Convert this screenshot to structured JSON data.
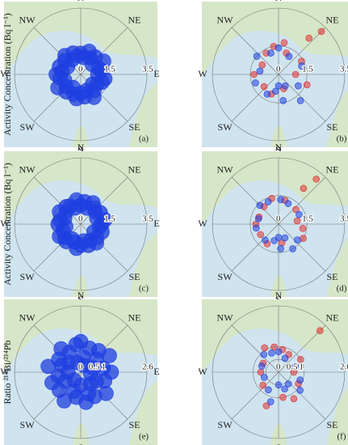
{
  "chart_data": [
    {
      "type": "polar-scatter",
      "panel": "(a)",
      "ylabel": "Activity Concentration (Bq l⁻¹)",
      "directions": [
        "N",
        "NE",
        "E",
        "SE",
        "S",
        "SW",
        "W",
        "NW"
      ],
      "rlim": [
        0,
        3.5
      ],
      "rticks": [
        0,
        1.5,
        3.5
      ],
      "series": [
        {
          "color": "#1f3fe0",
          "theta": [
            0,
            10,
            20,
            30,
            40,
            50,
            60,
            70,
            80,
            90,
            100,
            110,
            120,
            130,
            140,
            150,
            160,
            170,
            180,
            190,
            200,
            210,
            220,
            230,
            240,
            250,
            260,
            270,
            280,
            290,
            300,
            310,
            320,
            330,
            340,
            350
          ],
          "r": [
            1.1,
            0.9,
            1.3,
            1.0,
            1.2,
            0.8,
            1.4,
            1.0,
            1.1,
            0.9,
            1.3,
            1.2,
            1.0,
            0.8,
            1.1,
            1.4,
            0.9,
            1.2,
            1.0,
            1.3,
            1.1,
            0.8,
            1.2,
            1.0,
            1.4,
            0.9,
            1.1,
            1.3,
            1.0,
            1.2,
            0.8,
            1.1,
            1.3,
            0.9,
            1.2,
            1.0
          ]
        }
      ]
    },
    {
      "type": "polar-scatter",
      "panel": "(b)",
      "directions": [
        "N",
        "NE",
        "E",
        "SE",
        "S",
        "SW",
        "W",
        "NW"
      ],
      "rlim": [
        0,
        3.5
      ],
      "rticks": [
        0,
        1.5,
        3.5
      ],
      "series": [
        {
          "color": "#e03030",
          "theta": [
            20,
            40,
            60,
            300,
            330,
            350,
            90,
            110,
            160,
            200,
            230,
            270,
            45,
            10
          ],
          "r": [
            1.2,
            2.5,
            1.4,
            1.0,
            1.3,
            1.5,
            0.9,
            1.6,
            0.8,
            1.1,
            1.0,
            1.3,
            3.2,
            1.7
          ]
        },
        {
          "color": "#2040e0",
          "theta": [
            0,
            30,
            70,
            120,
            150,
            180,
            190,
            210,
            250,
            280,
            310,
            340,
            140,
            170
          ],
          "r": [
            1.4,
            1.1,
            1.3,
            1.2,
            0.7,
            0.6,
            0.9,
            1.2,
            1.3,
            1.0,
            1.5,
            1.2,
            1.8,
            1.4
          ]
        }
      ]
    },
    {
      "type": "polar-scatter",
      "panel": "(c)",
      "ylabel": "Activity Concentration (Bq l⁻¹)",
      "directions": [
        "N",
        "NE",
        "E",
        "SE",
        "S",
        "SW",
        "W",
        "NW"
      ],
      "rlim": [
        0,
        3.5
      ],
      "rticks": [
        0,
        1.5,
        3.5
      ],
      "series": [
        {
          "color": "#1f3fe0",
          "theta": [
            0,
            10,
            20,
            30,
            40,
            50,
            60,
            70,
            80,
            90,
            100,
            110,
            120,
            130,
            140,
            150,
            160,
            170,
            180,
            190,
            200,
            210,
            220,
            230,
            240,
            250,
            260,
            270,
            280,
            290,
            300,
            310,
            320,
            330,
            340,
            350
          ],
          "r": [
            1.0,
            1.2,
            0.9,
            1.3,
            1.1,
            1.0,
            1.2,
            0.9,
            1.3,
            1.1,
            1.0,
            1.2,
            0.8,
            1.1,
            1.3,
            1.0,
            1.2,
            0.9,
            1.1,
            1.3,
            1.0,
            0.9,
            1.2,
            1.1,
            1.3,
            1.0,
            0.8,
            1.2,
            1.1,
            0.9,
            1.3,
            1.0,
            1.2,
            1.1,
            0.9,
            1.3
          ]
        }
      ]
    },
    {
      "type": "polar-scatter",
      "panel": "(d)",
      "directions": [
        "N",
        "NE",
        "E",
        "SE",
        "S",
        "SW",
        "W",
        "NW"
      ],
      "rlim": [
        0,
        3.5
      ],
      "rticks": [
        0,
        1.5,
        3.5
      ],
      "series": [
        {
          "color": "#e03030",
          "theta": [
            15,
            35,
            50,
            290,
            320,
            345,
            80,
            120,
            170,
            210,
            240,
            270,
            40,
            100
          ],
          "r": [
            1.3,
            2.3,
            1.2,
            1.1,
            1.2,
            1.4,
            1.0,
            1.5,
            1.0,
            1.2,
            1.1,
            1.2,
            3.1,
            1.3
          ]
        },
        {
          "color": "#2040e0",
          "theta": [
            5,
            25,
            65,
            130,
            155,
            180,
            195,
            220,
            260,
            285,
            315,
            335,
            150,
            175
          ],
          "r": [
            1.3,
            1.2,
            1.2,
            1.3,
            0.8,
            0.7,
            0.9,
            1.1,
            1.2,
            1.1,
            1.4,
            1.3,
            1.5,
            1.3
          ]
        }
      ]
    },
    {
      "type": "polar-scatter",
      "panel": "(e)",
      "ylabel": "Ratio ²¹⁴Bi/²¹⁴Pb",
      "directions": [
        "N",
        "NE",
        "E",
        "SE",
        "S",
        "SW",
        "W",
        "NW"
      ],
      "rlim": [
        0,
        2.6
      ],
      "rticks": [
        0,
        0.5,
        1,
        2.6
      ],
      "series": [
        {
          "color": "#1f3fe0",
          "theta": [
            0,
            10,
            20,
            30,
            40,
            50,
            60,
            70,
            80,
            90,
            100,
            110,
            120,
            130,
            140,
            150,
            160,
            170,
            180,
            190,
            200,
            210,
            220,
            230,
            240,
            250,
            260,
            270,
            280,
            290,
            300,
            310,
            320,
            330,
            340,
            350
          ],
          "r": [
            1.2,
            0.6,
            1.0,
            0.3,
            1.1,
            0.8,
            1.3,
            0.5,
            0.9,
            1.2,
            0.4,
            1.0,
            0.7,
            1.3,
            0.6,
            1.1,
            0.9,
            1.2,
            0.5,
            1.0,
            0.8,
            1.3,
            0.4,
            1.1,
            0.7,
            1.2,
            0.9,
            0.5,
            1.3,
            0.8,
            1.0,
            0.6,
            1.2,
            0.9,
            0.4,
            1.1
          ]
        }
      ]
    },
    {
      "type": "polar-scatter",
      "panel": "(f)",
      "directions": [
        "N",
        "NE",
        "E",
        "SE",
        "S",
        "SW",
        "W",
        "NW"
      ],
      "rlim": [
        0,
        2.6
      ],
      "rticks": [
        0,
        0.5,
        1,
        2.6
      ],
      "series": [
        {
          "color": "#e03030",
          "theta": [
            10,
            30,
            60,
            300,
            330,
            350,
            90,
            120,
            150,
            200,
            230,
            270,
            45,
            170
          ],
          "r": [
            0.9,
            0.8,
            1.0,
            0.7,
            1.1,
            1.0,
            0.6,
            0.9,
            1.2,
            1.4,
            0.8,
            0.7,
            2.3,
            1.0
          ]
        },
        {
          "color": "#2040e0",
          "theta": [
            0,
            25,
            70,
            110,
            140,
            160,
            180,
            210,
            250,
            290,
            320,
            340,
            130,
            195
          ],
          "r": [
            0.8,
            0.6,
            0.7,
            0.9,
            0.6,
            0.7,
            0.5,
            0.8,
            0.6,
            0.7,
            0.9,
            0.8,
            1.1,
            1.2
          ]
        }
      ]
    }
  ]
}
